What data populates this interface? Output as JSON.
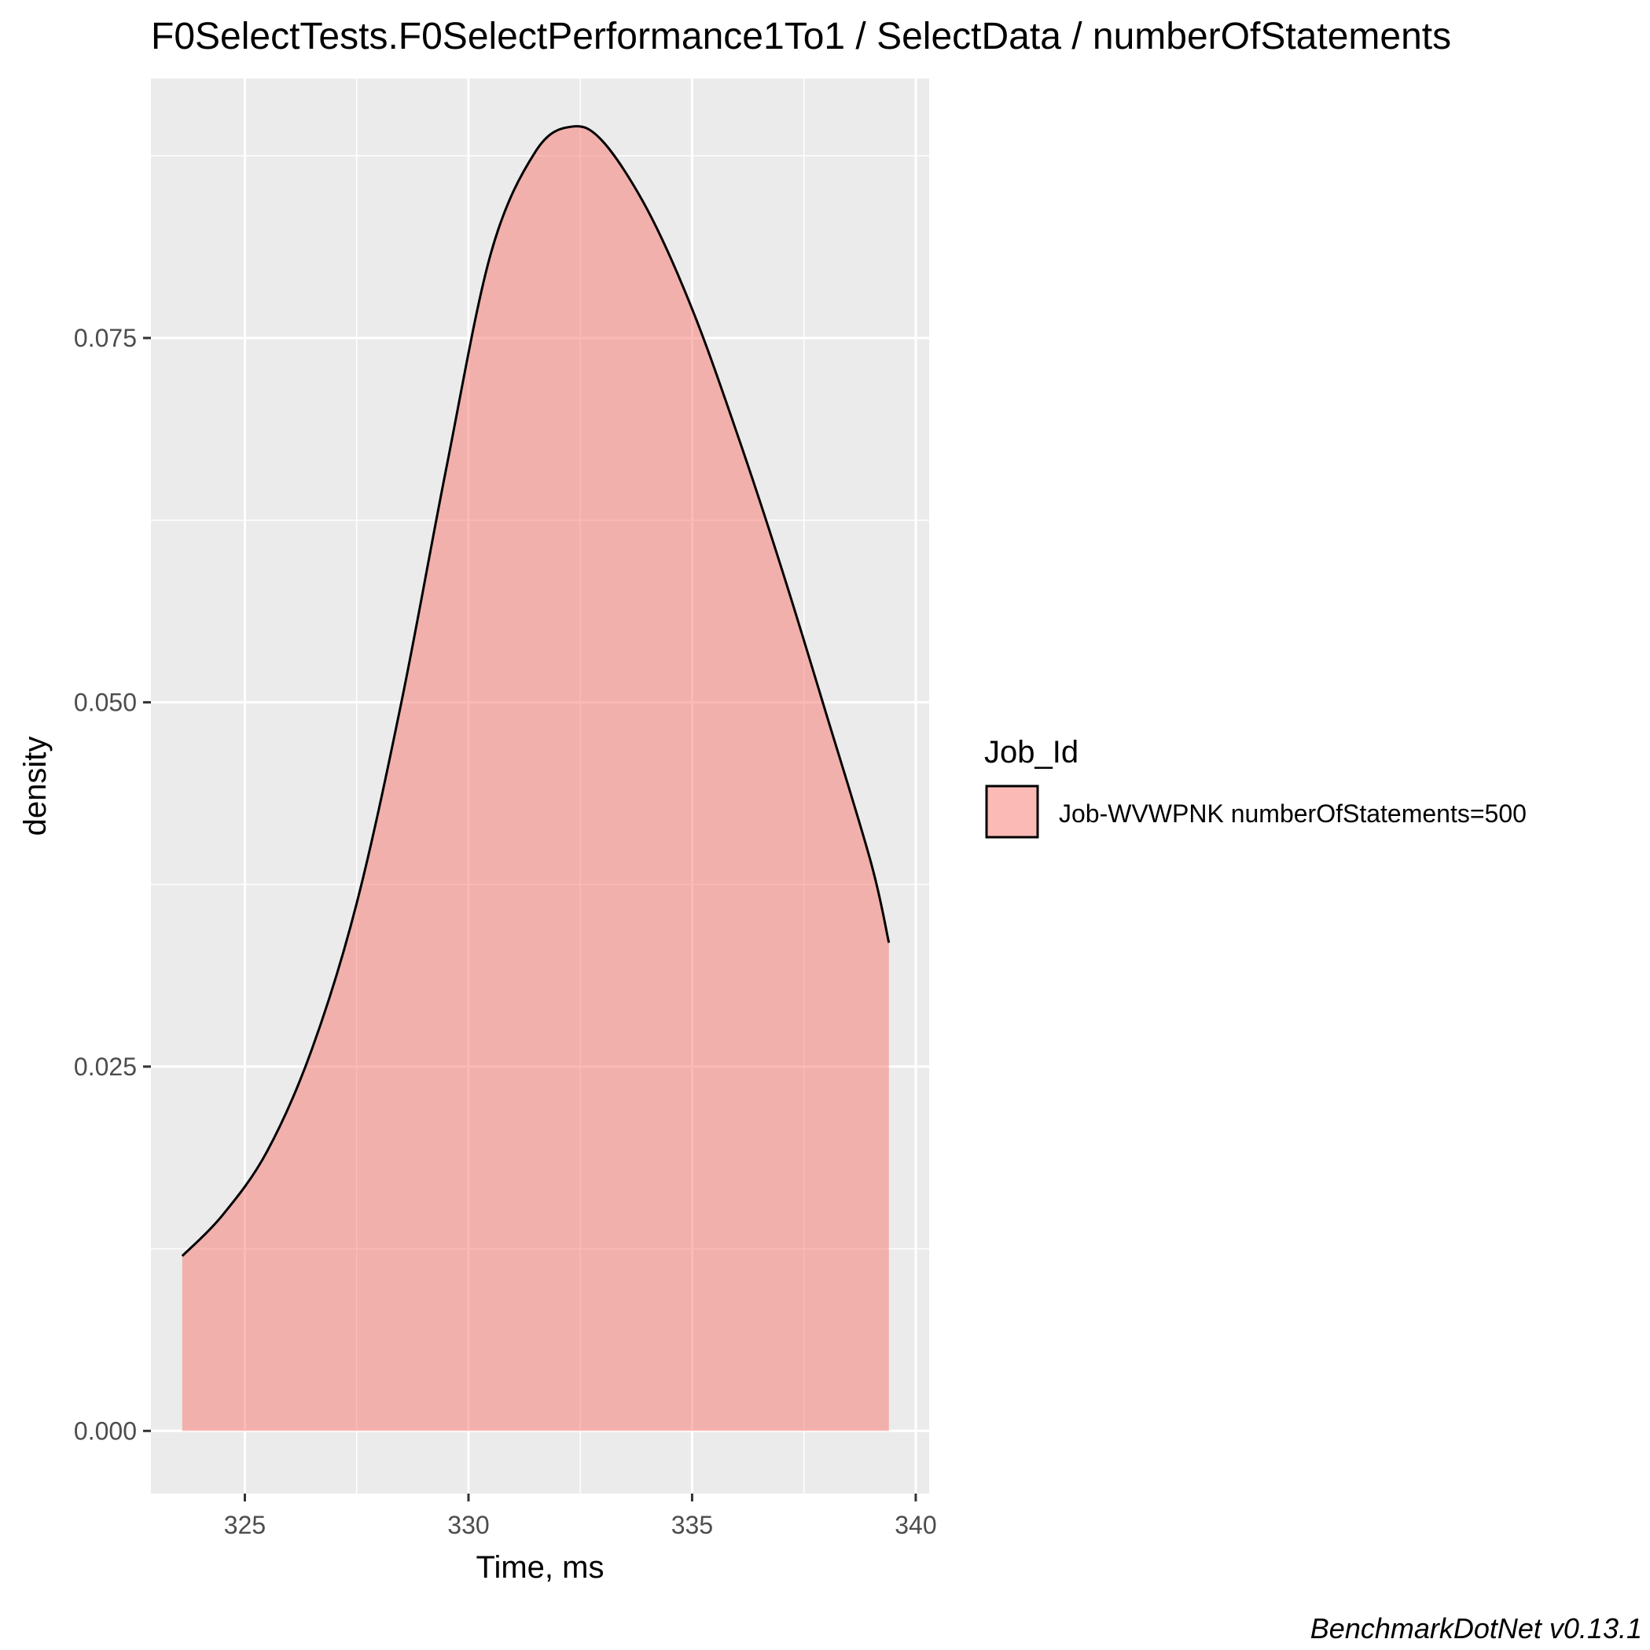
{
  "chart_data": {
    "type": "area",
    "title": "F0SelectTests.F0SelectPerformance1To1 / SelectData / numberOfStatements",
    "xlabel": "Time, ms",
    "ylabel": "density",
    "xlim": [
      322.9,
      340.3
    ],
    "ylim": [
      -0.0043,
      0.0928
    ],
    "x_ticks": [
      325,
      330,
      335,
      340
    ],
    "x_tick_labels": [
      "325",
      "330",
      "335",
      "340"
    ],
    "y_ticks": [
      0.0,
      0.025,
      0.05,
      0.075
    ],
    "y_tick_labels": [
      "0.000",
      "0.025",
      "0.050",
      "0.075"
    ],
    "grid": true,
    "legend": {
      "title": "Job_Id",
      "position": "right",
      "entries": [
        "Job-WVWPNK numberOfStatements=500"
      ]
    },
    "fill_color": "#F8766D",
    "fill_opacity": 0.5,
    "line_color": "#000000",
    "panel_color": "#EBEBEB",
    "series": [
      {
        "name": "Job-WVWPNK numberOfStatements=500",
        "x": [
          323.6,
          324.5,
          325.5,
          326.5,
          327.5,
          328.5,
          329.5,
          330.5,
          331.5,
          332.3,
          333.0,
          334.0,
          335.0,
          336.0,
          337.0,
          338.0,
          339.0,
          339.4
        ],
        "y": [
          0.012,
          0.0148,
          0.0192,
          0.0262,
          0.0362,
          0.05,
          0.066,
          0.0808,
          0.0878,
          0.0895,
          0.0885,
          0.0838,
          0.077,
          0.0685,
          0.0592,
          0.0492,
          0.039,
          0.0335
        ]
      }
    ]
  },
  "caption": "BenchmarkDotNet v0.13.1"
}
